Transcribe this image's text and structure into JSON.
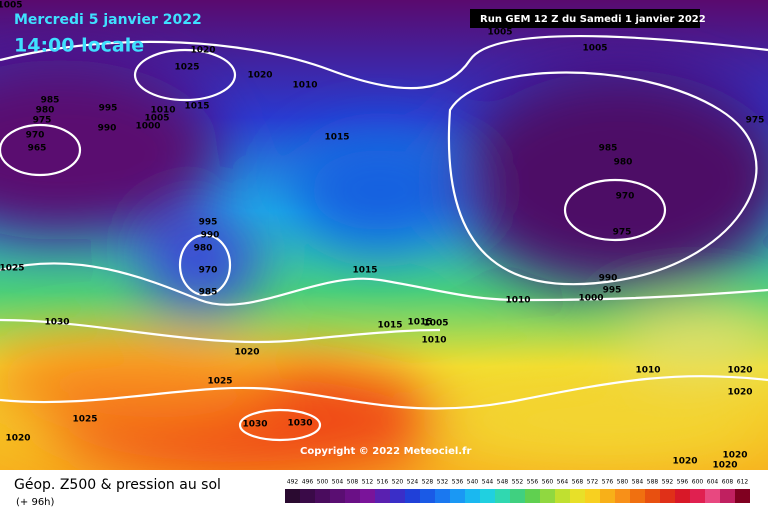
{
  "header": {
    "date": "Mercredi 5 janvier 2022",
    "time": "14:00 locale",
    "run": "Run GEM 12 Z du Samedi 1 janvier 2022"
  },
  "copyright": "Copyright © 2022 Meteociel.fr",
  "footer": {
    "title": "Géop. Z500 & pression au sol",
    "lead": "(+ 96h)"
  },
  "legend": {
    "labels": [
      492,
      496,
      500,
      504,
      508,
      512,
      516,
      520,
      524,
      528,
      532,
      536,
      540,
      544,
      548,
      552,
      556,
      560,
      564,
      568,
      572,
      576,
      580,
      584,
      588,
      592,
      596,
      600,
      604,
      608,
      612
    ]
  },
  "isobars": [
    1005,
    1020,
    1025,
    1020,
    1010,
    1005,
    1005,
    985,
    980,
    975,
    970,
    965,
    995,
    990,
    1010,
    1005,
    1000,
    1015,
    1015,
    975,
    985,
    980,
    970,
    975,
    995,
    990,
    980,
    970,
    985,
    1025,
    1015,
    990,
    995,
    1000,
    1010,
    1030,
    1015,
    1015,
    1005,
    1010,
    1020,
    1025,
    1010,
    1020,
    1020,
    1025,
    1030,
    1030,
    1020,
    1020,
    1020,
    1020
  ]
}
